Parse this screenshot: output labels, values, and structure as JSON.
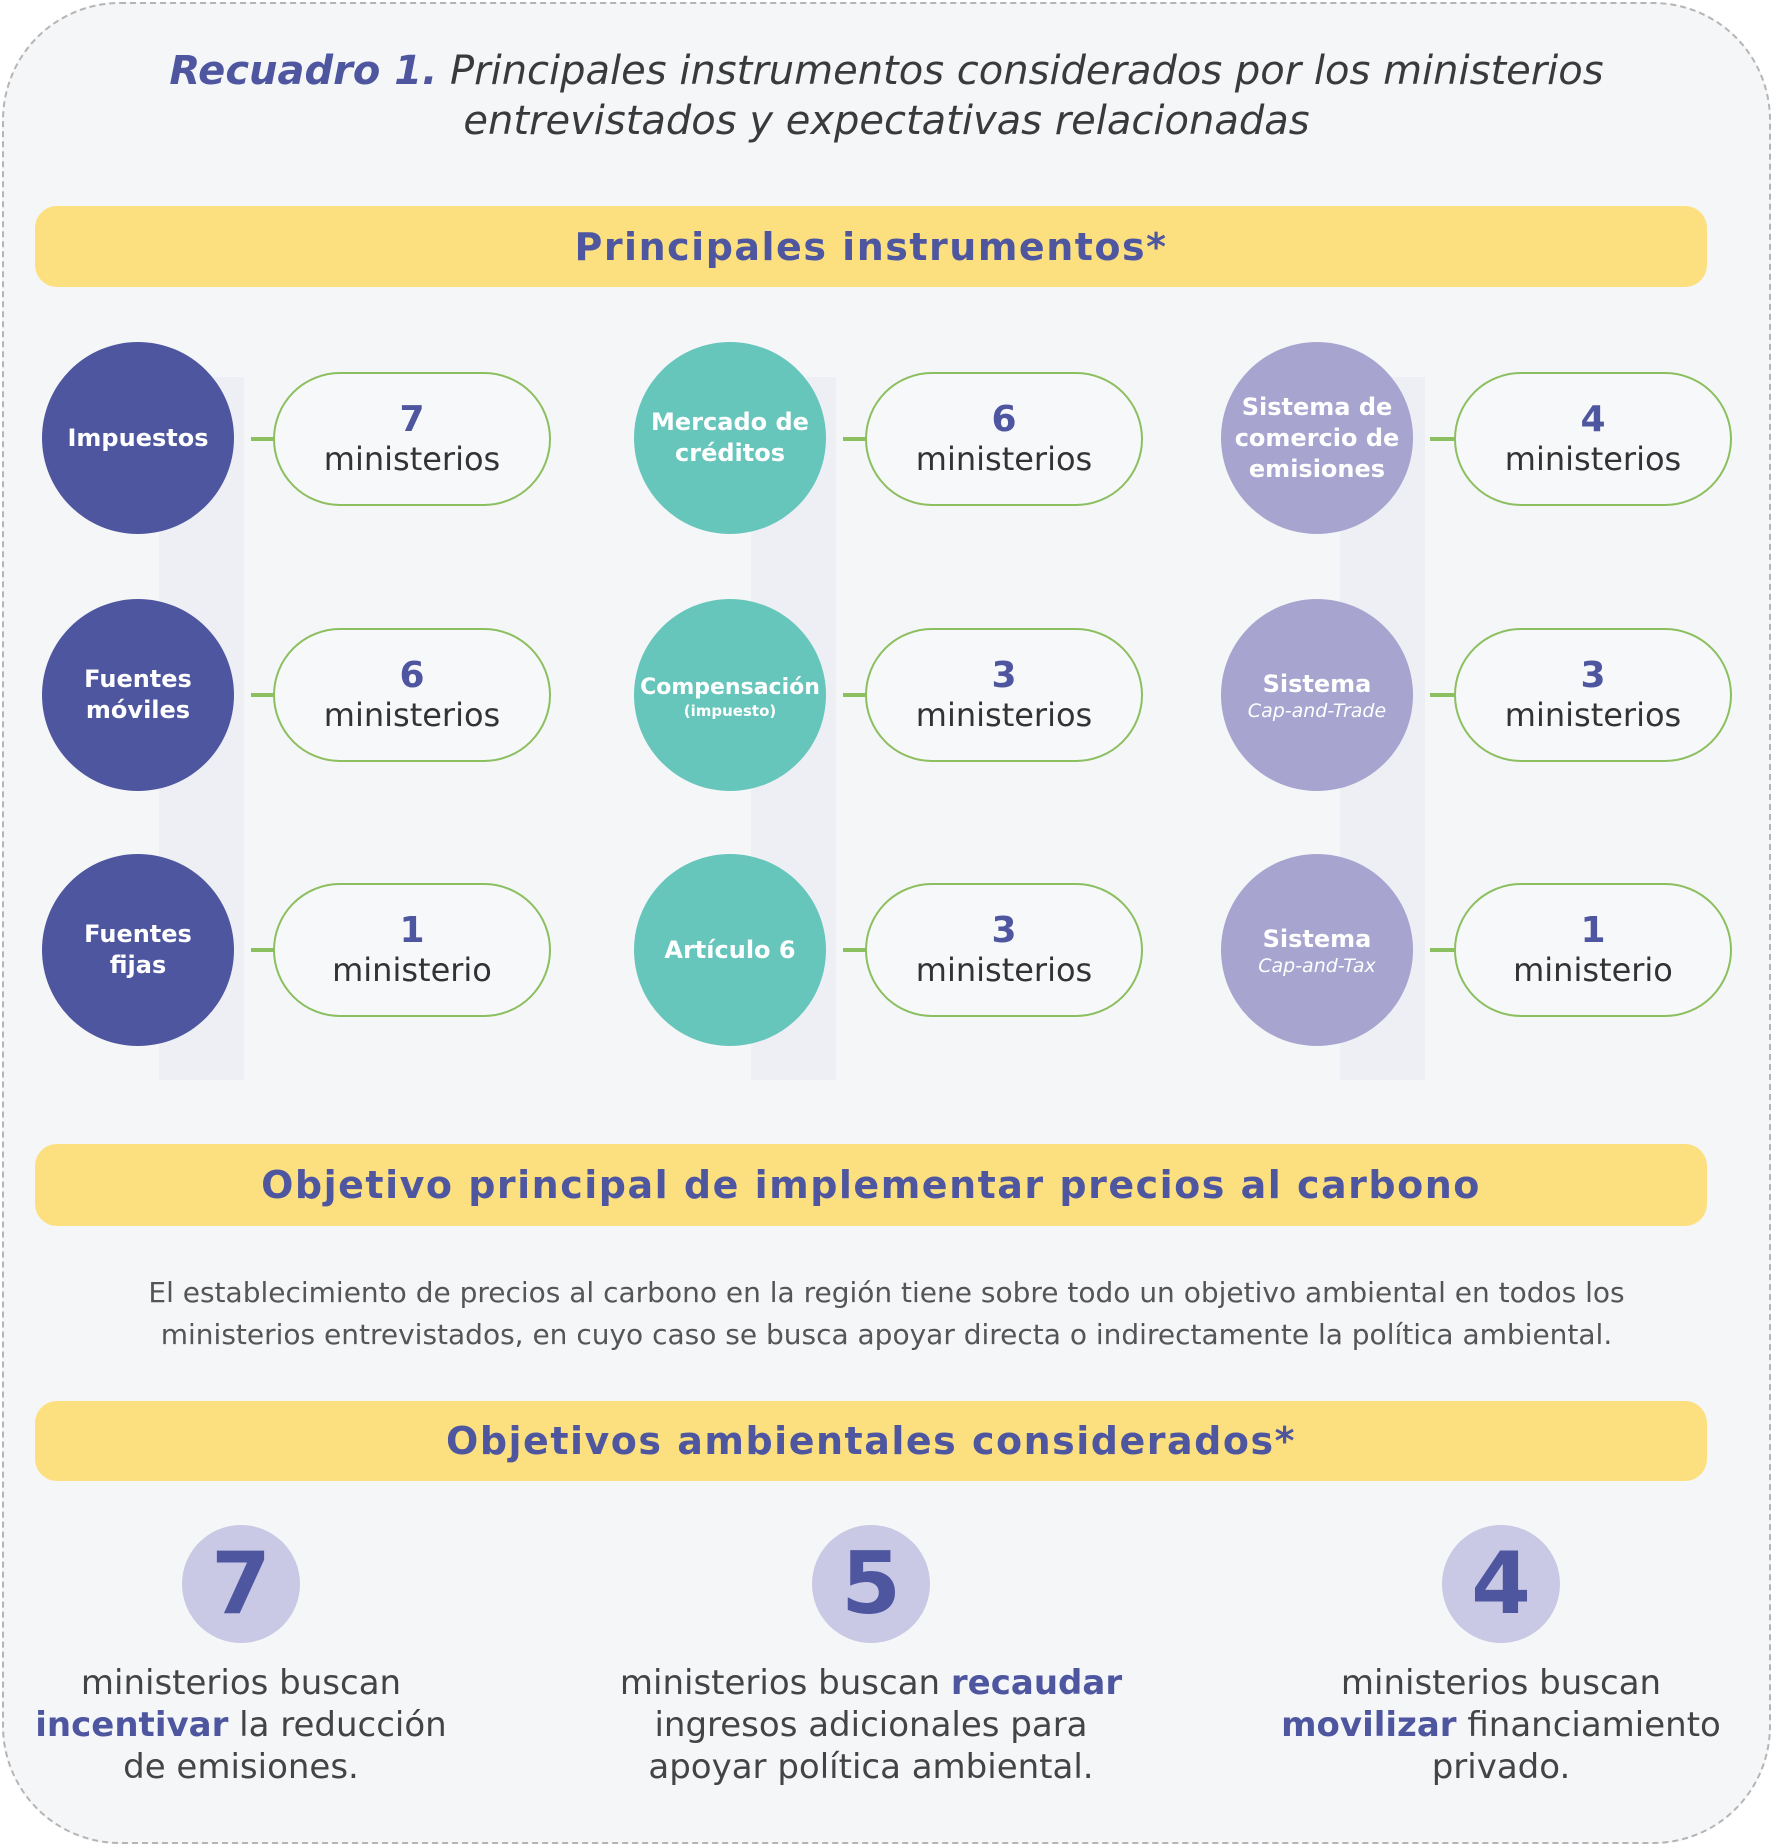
{
  "title": {
    "label": "Recuadro 1.",
    "text_line1": "Principales instrumentos considerados por los ministerios",
    "text_line2": "entrevistados y expectativas relacionadas"
  },
  "banners": {
    "instrumentos": "Principales instrumentos*",
    "objetivo": "Objetivo principal de implementar precios al carbono",
    "ambientales": "Objetivos ambientales considerados*"
  },
  "colors": {
    "impuestos": "#4e56a0",
    "mercado": "#67c6bb",
    "sistema": "#a7a4cf",
    "banner": "#fce080",
    "connector": "#8cbf5f"
  },
  "instruments": [
    {
      "line1": "Impuestos",
      "line2": "",
      "count": "7",
      "unit": "ministerios"
    },
    {
      "line1": "Fuentes",
      "line2": "móviles",
      "count": "6",
      "unit": "ministerios"
    },
    {
      "line1": "Fuentes",
      "line2": "fijas",
      "count": "1",
      "unit": "ministerio"
    },
    {
      "line1": "Mercado de",
      "line2": "créditos",
      "count": "6",
      "unit": "ministerios"
    },
    {
      "line1": "Compensación",
      "sub": "(impuesto)",
      "count": "3",
      "unit": "ministerios"
    },
    {
      "line1": "Artículo 6",
      "line2": "",
      "count": "3",
      "unit": "ministerios"
    },
    {
      "line1": "Sistema de",
      "line2": "comercio de",
      "line3": "emisiones",
      "count": "4",
      "unit": "ministerios"
    },
    {
      "line1": "Sistema",
      "italic": "Cap-and-Trade",
      "count": "3",
      "unit": "ministerios"
    },
    {
      "line1": "Sistema",
      "italic": "Cap-and-Tax",
      "count": "1",
      "unit": "ministerio"
    }
  ],
  "paragraph": {
    "line1": "El establecimiento de precios al carbono en la región tiene sobre todo un objetivo ambiental en todos los",
    "line2": "ministerios entrevistados, en cuyo caso se busca apoyar directa o indirectamente la política ambiental."
  },
  "objectives": [
    {
      "number": "7",
      "pre": "ministerios buscan",
      "bold": "incentivar",
      "post": "la reducción",
      "post2": "de emisiones."
    },
    {
      "number": "5",
      "pre": "ministerios buscan",
      "bold": "recaudar",
      "post": "ingresos adicionales para",
      "post2": "apoyar política ambiental."
    },
    {
      "number": "4",
      "pre": "ministerios buscan",
      "bold": "movilizar",
      "post": "financiamiento",
      "post2": "privado."
    }
  ]
}
